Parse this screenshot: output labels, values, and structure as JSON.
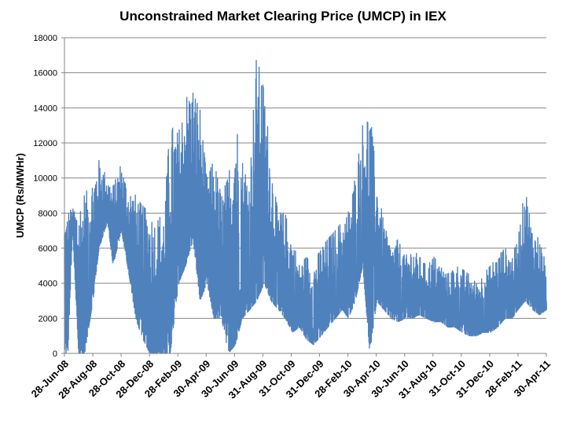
{
  "chart_data": {
    "type": "line",
    "title": "Unconstrained Market Clearing Price (UMCP) in IEX",
    "xlabel": "",
    "ylabel": "UMCP (Rs/MWHr)",
    "ylim": [
      0,
      18000
    ],
    "yticks": [
      0,
      2000,
      4000,
      6000,
      8000,
      10000,
      12000,
      14000,
      16000,
      18000
    ],
    "xlim": [
      "2008-06-28",
      "2011-04-30"
    ],
    "xtick_labels": [
      "28-Jun-08",
      "28-Aug-08",
      "28-Oct-08",
      "28-Dec-08",
      "28-Feb-09",
      "30-Apr-09",
      "30-Jun-09",
      "31-Aug-09",
      "31-Oct-09",
      "31-Dec-09",
      "28-Feb-10",
      "30-Apr-10",
      "30-Jun-10",
      "31-Aug-10",
      "31-Oct-10",
      "31-Dec-10",
      "28-Feb-11",
      "30-Apr-11"
    ],
    "grid": "horizontal",
    "legend": "none",
    "color": "#4f81bd",
    "series": [
      {
        "x": [
          "2008-06-28",
          "2008-07-05",
          "2008-07-15",
          "2008-07-28",
          "2008-08-10",
          "2008-08-28",
          "2008-09-10",
          "2008-09-28",
          "2008-10-10",
          "2008-10-28",
          "2008-11-10",
          "2008-11-28",
          "2008-12-10",
          "2008-12-28",
          "2009-01-10",
          "2009-01-28",
          "2009-02-10",
          "2009-02-28",
          "2009-03-15",
          "2009-03-31",
          "2009-04-15",
          "2009-04-30",
          "2009-05-15",
          "2009-05-31",
          "2009-06-15",
          "2009-06-30",
          "2009-07-15",
          "2009-07-31",
          "2009-08-15",
          "2009-08-31",
          "2009-09-15",
          "2009-09-30",
          "2009-10-15",
          "2009-10-31",
          "2009-11-15",
          "2009-11-30",
          "2009-12-15",
          "2009-12-31",
          "2010-01-15",
          "2010-01-31",
          "2010-02-15",
          "2010-02-28",
          "2010-03-15",
          "2010-03-31",
          "2010-04-15",
          "2010-04-30",
          "2010-05-15",
          "2010-05-31",
          "2010-06-15",
          "2010-06-30",
          "2010-07-15",
          "2010-07-31",
          "2010-08-15",
          "2010-08-31",
          "2010-09-15",
          "2010-09-30",
          "2010-10-15",
          "2010-10-31",
          "2010-11-15",
          "2010-11-30",
          "2010-12-15",
          "2010-12-31",
          "2011-01-15",
          "2011-01-31",
          "2011-02-15",
          "2011-02-28",
          "2011-03-15",
          "2011-03-31",
          "2011-04-15",
          "2011-04-30"
        ],
        "high": [
          8000,
          8100,
          8200,
          8500,
          9000,
          10000,
          11000,
          10000,
          9500,
          10800,
          9500,
          9000,
          8500,
          8000,
          7500,
          8000,
          13000,
          12500,
          14500,
          15000,
          14000,
          10000,
          11000,
          9000,
          10000,
          13500,
          11000,
          10000,
          17000,
          15000,
          11000,
          8000,
          8000,
          6500,
          5000,
          5500,
          5000,
          6000,
          6500,
          7000,
          7500,
          8000,
          10000,
          13000,
          14000,
          10000,
          7500,
          6000,
          6500,
          5500,
          6000,
          5500,
          5000,
          5500,
          5000,
          4500,
          5000,
          4800,
          4500,
          4000,
          4500,
          5000,
          5500,
          6000,
          5500,
          6500,
          9500,
          7000,
          6500,
          5000
        ],
        "low": [
          0,
          0,
          7000,
          0,
          0,
          3000,
          6000,
          7500,
          5000,
          7000,
          5000,
          2000,
          1000,
          0,
          0,
          0,
          0,
          4000,
          5000,
          6500,
          3000,
          4000,
          2000,
          2000,
          0,
          500,
          2000,
          2500,
          3000,
          4000,
          3000,
          2500,
          2000,
          1200,
          1500,
          800,
          500,
          1000,
          1500,
          2000,
          2500,
          2000,
          3000,
          5000,
          0,
          3000,
          2500,
          2000,
          1800,
          2000,
          2000,
          2200,
          2000,
          1800,
          1800,
          1500,
          1500,
          1200,
          1000,
          1000,
          1200,
          1200,
          1500,
          2000,
          2000,
          2500,
          3000,
          2500,
          2200,
          2500
        ]
      }
    ]
  }
}
